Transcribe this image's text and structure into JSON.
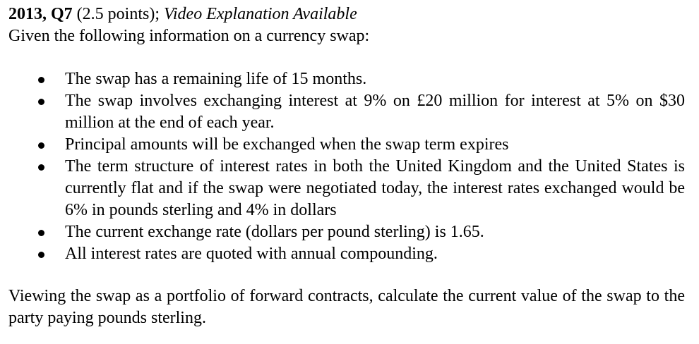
{
  "heading": {
    "question_id": "2013, Q7",
    "points": " (2.5 points); ",
    "note": "Video Explanation Available"
  },
  "intro": "Given the following information on a currency swap:",
  "bullets": [
    "The swap has a remaining life of 15 months.",
    "The swap involves exchanging interest at 9% on £20 million for interest at 5% on $30 million at the end of each year.",
    "Principal amounts will be exchanged when the swap term expires",
    "The term structure of interest rates in both the United Kingdom and the United States is currently flat and if the swap were negotiated today, the interest rates exchanged would be 6% in pounds sterling and 4% in dollars",
    "The current exchange rate (dollars per pound sterling) is 1.65.",
    "All interest rates are quoted with annual compounding."
  ],
  "conclusion": "Viewing the swap as a portfolio of forward contracts, calculate the current value of the swap to the party paying pounds sterling.",
  "icons": {
    "bullet": "bullet-icon"
  }
}
